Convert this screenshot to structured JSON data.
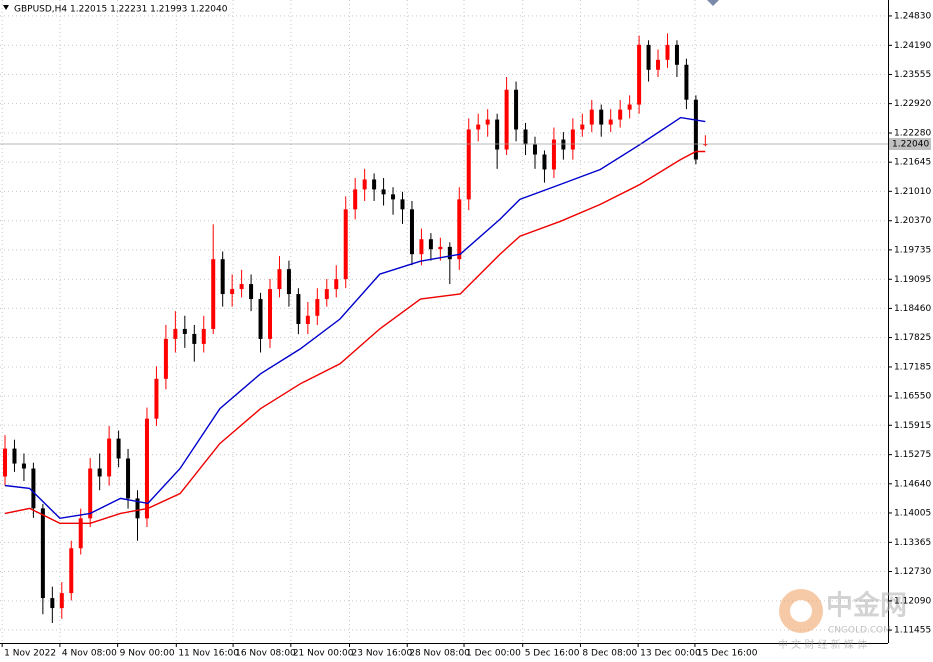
{
  "chart_data": {
    "type": "candlestick",
    "title": "GBPUSD,H4  1.22015 1.22231 1.21993 1.22040",
    "up_color": "#ff0000",
    "down_color": "#000000",
    "grid": true,
    "xlim": [
      -0.53,
      93.3
    ],
    "ylim": [
      1.11173,
      1.25177
    ],
    "xticks": [
      {
        "value": -0.3,
        "label": "1 Nov 2022"
      },
      {
        "value": 5.8,
        "label": "4 Nov 08:00"
      },
      {
        "value": 11.9,
        "label": "9 Nov 00:00"
      },
      {
        "value": 18.1,
        "label": "11 Nov 16:00"
      },
      {
        "value": 24.1,
        "label": "16 Nov 08:00"
      },
      {
        "value": 30.2,
        "label": "21 Nov 00:00"
      },
      {
        "value": 36.4,
        "label": "23 Nov 16:00"
      },
      {
        "value": 42.5,
        "label": "28 Nov 08:00"
      },
      {
        "value": 48.5,
        "label": "1 Dec 00:00"
      },
      {
        "value": 54.7,
        "label": "5 Dec 16:00"
      },
      {
        "value": 60.8,
        "label": "8 Dec 08:00"
      },
      {
        "value": 66.9,
        "label": "13 Dec 00:00"
      },
      {
        "value": 72.9,
        "label": "15 Dec 16:00"
      }
    ],
    "yticks": [
      {
        "value": 1.2483,
        "label": "1.24830"
      },
      {
        "value": 1.2419,
        "label": "1.24190"
      },
      {
        "value": 1.23555,
        "label": "1.23555"
      },
      {
        "value": 1.2292,
        "label": "1.22920"
      },
      {
        "value": 1.2228,
        "label": "1.22280"
      },
      {
        "value": 1.21645,
        "label": "1.21645"
      },
      {
        "value": 1.2101,
        "label": "1.21010"
      },
      {
        "value": 1.2037,
        "label": "1.20370"
      },
      {
        "value": 1.19735,
        "label": "1.19735"
      },
      {
        "value": 1.19095,
        "label": "1.19095"
      },
      {
        "value": 1.1846,
        "label": "1.18460"
      },
      {
        "value": 1.17825,
        "label": "1.17825"
      },
      {
        "value": 1.17185,
        "label": "1.17185"
      },
      {
        "value": 1.1655,
        "label": "1.16550"
      },
      {
        "value": 1.15915,
        "label": "1.15915"
      },
      {
        "value": 1.15275,
        "label": "1.15275"
      },
      {
        "value": 1.1464,
        "label": "1.14640"
      },
      {
        "value": 1.14005,
        "label": "1.14005"
      },
      {
        "value": 1.13365,
        "label": "1.13365"
      },
      {
        "value": 1.1273,
        "label": "1.12730"
      },
      {
        "value": 1.1209,
        "label": "1.12090"
      },
      {
        "value": 1.11455,
        "label": "1.11455"
      }
    ],
    "last_price": {
      "value": 1.2204,
      "label": "1.22040"
    },
    "open": [
      1.148,
      1.15407,
      1.15081,
      1.14973,
      1.14105,
      1.12151,
      1.11934,
      1.1226,
      1.13236,
      1.13888,
      1.14973,
      1.148,
      1.15625,
      1.15191,
      1.14322,
      1.13888,
      1.16059,
      1.16927,
      1.17796,
      1.18013,
      1.17904,
      1.17687,
      1.18013,
      1.19532,
      1.18773,
      1.18881,
      1.1899,
      1.18664,
      1.17796,
      1.18881,
      1.19315,
      1.18773,
      1.18121,
      1.183,
      1.18664,
      1.18881,
      1.19098,
      1.20618,
      1.21052,
      1.21269,
      1.21052,
      1.20944,
      1.20835,
      1.20618,
      1.19641,
      1.19967,
      1.1975,
      1.198,
      1.19532,
      1.20835,
      1.22357,
      1.22464,
      1.22573,
      1.21921,
      1.23223,
      1.22357,
      1.22029,
      1.21812,
      1.21486,
      1.22138,
      1.21921,
      1.22357,
      1.22464,
      1.22789,
      1.22464,
      1.22573,
      1.22789,
      1.229,
      1.242,
      1.23657,
      1.23874,
      1.242,
      1.23766,
      1.23006,
      1.22015
    ],
    "high": [
      1.157,
      1.156,
      1.153,
      1.151,
      1.142,
      1.124,
      1.125,
      1.134,
      1.141,
      1.152,
      1.153,
      1.159,
      1.158,
      1.154,
      1.145,
      1.163,
      1.172,
      1.181,
      1.184,
      1.183,
      1.181,
      1.183,
      1.20292,
      1.197,
      1.192,
      1.193,
      1.192,
      1.188,
      1.191,
      1.196,
      1.195,
      1.189,
      1.186,
      1.189,
      1.191,
      1.194,
      1.209,
      1.213,
      1.215,
      1.214,
      1.213,
      1.211,
      1.21,
      1.208,
      1.202,
      1.201,
      1.2,
      1.199,
      1.211,
      1.226,
      1.227,
      1.228,
      1.227,
      1.235,
      1.234,
      1.225,
      1.222,
      1.219,
      1.224,
      1.223,
      1.226,
      1.227,
      1.23,
      1.229,
      1.228,
      1.23,
      1.231,
      1.244,
      1.243,
      1.241,
      1.2445,
      1.243,
      1.239,
      1.231,
      1.22231
    ],
    "low": [
      1.146,
      1.149,
      1.147,
      1.139,
      1.118,
      1.11608,
      1.117,
      1.121,
      1.131,
      1.137,
      1.145,
      1.146,
      1.15,
      1.141,
      1.134,
      1.137,
      1.159,
      1.167,
      1.175,
      1.176,
      1.173,
      1.175,
      1.179,
      1.185,
      1.185,
      1.187,
      1.184,
      1.175,
      1.176,
      1.187,
      1.185,
      1.179,
      1.179,
      1.181,
      1.185,
      1.187,
      1.189,
      1.204,
      1.208,
      1.208,
      1.207,
      1.205,
      1.203,
      1.194,
      1.194,
      1.195,
      1.195,
      1.1899,
      1.193,
      1.206,
      1.221,
      1.222,
      1.215,
      1.218,
      1.221,
      1.218,
      1.215,
      1.212,
      1.213,
      1.217,
      1.217,
      1.222,
      1.223,
      1.222,
      1.223,
      1.224,
      1.226,
      1.227,
      1.234,
      1.235,
      1.237,
      1.235,
      1.228,
      1.216,
      1.21993
    ],
    "close": [
      1.15407,
      1.15081,
      1.14973,
      1.14105,
      1.12151,
      1.11934,
      1.1226,
      1.13236,
      1.13888,
      1.14973,
      1.148,
      1.15625,
      1.15191,
      1.14322,
      1.13888,
      1.16059,
      1.16927,
      1.17796,
      1.18013,
      1.17904,
      1.17687,
      1.18013,
      1.19532,
      1.18773,
      1.18881,
      1.1899,
      1.18664,
      1.17796,
      1.18881,
      1.19315,
      1.18773,
      1.18121,
      1.183,
      1.18664,
      1.18881,
      1.19098,
      1.20618,
      1.21052,
      1.21269,
      1.21052,
      1.20944,
      1.20835,
      1.20618,
      1.19641,
      1.19967,
      1.1975,
      1.198,
      1.19532,
      1.20835,
      1.22357,
      1.22464,
      1.22573,
      1.21921,
      1.23223,
      1.22357,
      1.22029,
      1.21812,
      1.21486,
      1.22138,
      1.21921,
      1.22357,
      1.22464,
      1.22789,
      1.22464,
      1.22573,
      1.22789,
      1.229,
      1.242,
      1.23657,
      1.23874,
      1.242,
      1.23766,
      1.23006,
      1.21703,
      1.2204
    ],
    "lines": [
      {
        "color": "#0000cc",
        "x": [
          0,
          2.6,
          5.8,
          9.0,
          12.2,
          15.1,
          18.5,
          22.7,
          27.0,
          31.2,
          35.4,
          39.6,
          43.9,
          48.1,
          52.3,
          54.4,
          58.7,
          62.9,
          67.1,
          71.4,
          74
        ],
        "values": [
          1.14604,
          1.14539,
          1.13888,
          1.13996,
          1.14322,
          1.14213,
          1.14973,
          1.16276,
          1.17036,
          1.17579,
          1.1823,
          1.19207,
          1.19489,
          1.19641,
          1.20401,
          1.20835,
          1.21161,
          1.21486,
          1.22029,
          1.22615,
          1.22528
        ]
      },
      {
        "color": "#ee0000",
        "x": [
          0,
          2.6,
          5.8,
          9.0,
          12.2,
          15.1,
          18.5,
          22.7,
          27.0,
          31.2,
          35.4,
          39.6,
          43.9,
          48.1,
          52.3,
          54.4,
          58.7,
          62.9,
          67.1,
          71.4,
          73,
          74
        ],
        "values": [
          1.13996,
          1.14105,
          1.13779,
          1.13779,
          1.13996,
          1.14105,
          1.1443,
          1.15516,
          1.16276,
          1.16819,
          1.17253,
          1.18013,
          1.18664,
          1.18773,
          1.19641,
          1.20032,
          1.20357,
          1.20726,
          1.21161,
          1.21703,
          1.21877,
          1.21877
        ]
      }
    ],
    "watermark": {
      "brand": "中金网",
      "site": "CNGOLD.COM",
      "slogan": "中 文 财 经 新 媒 体"
    }
  }
}
